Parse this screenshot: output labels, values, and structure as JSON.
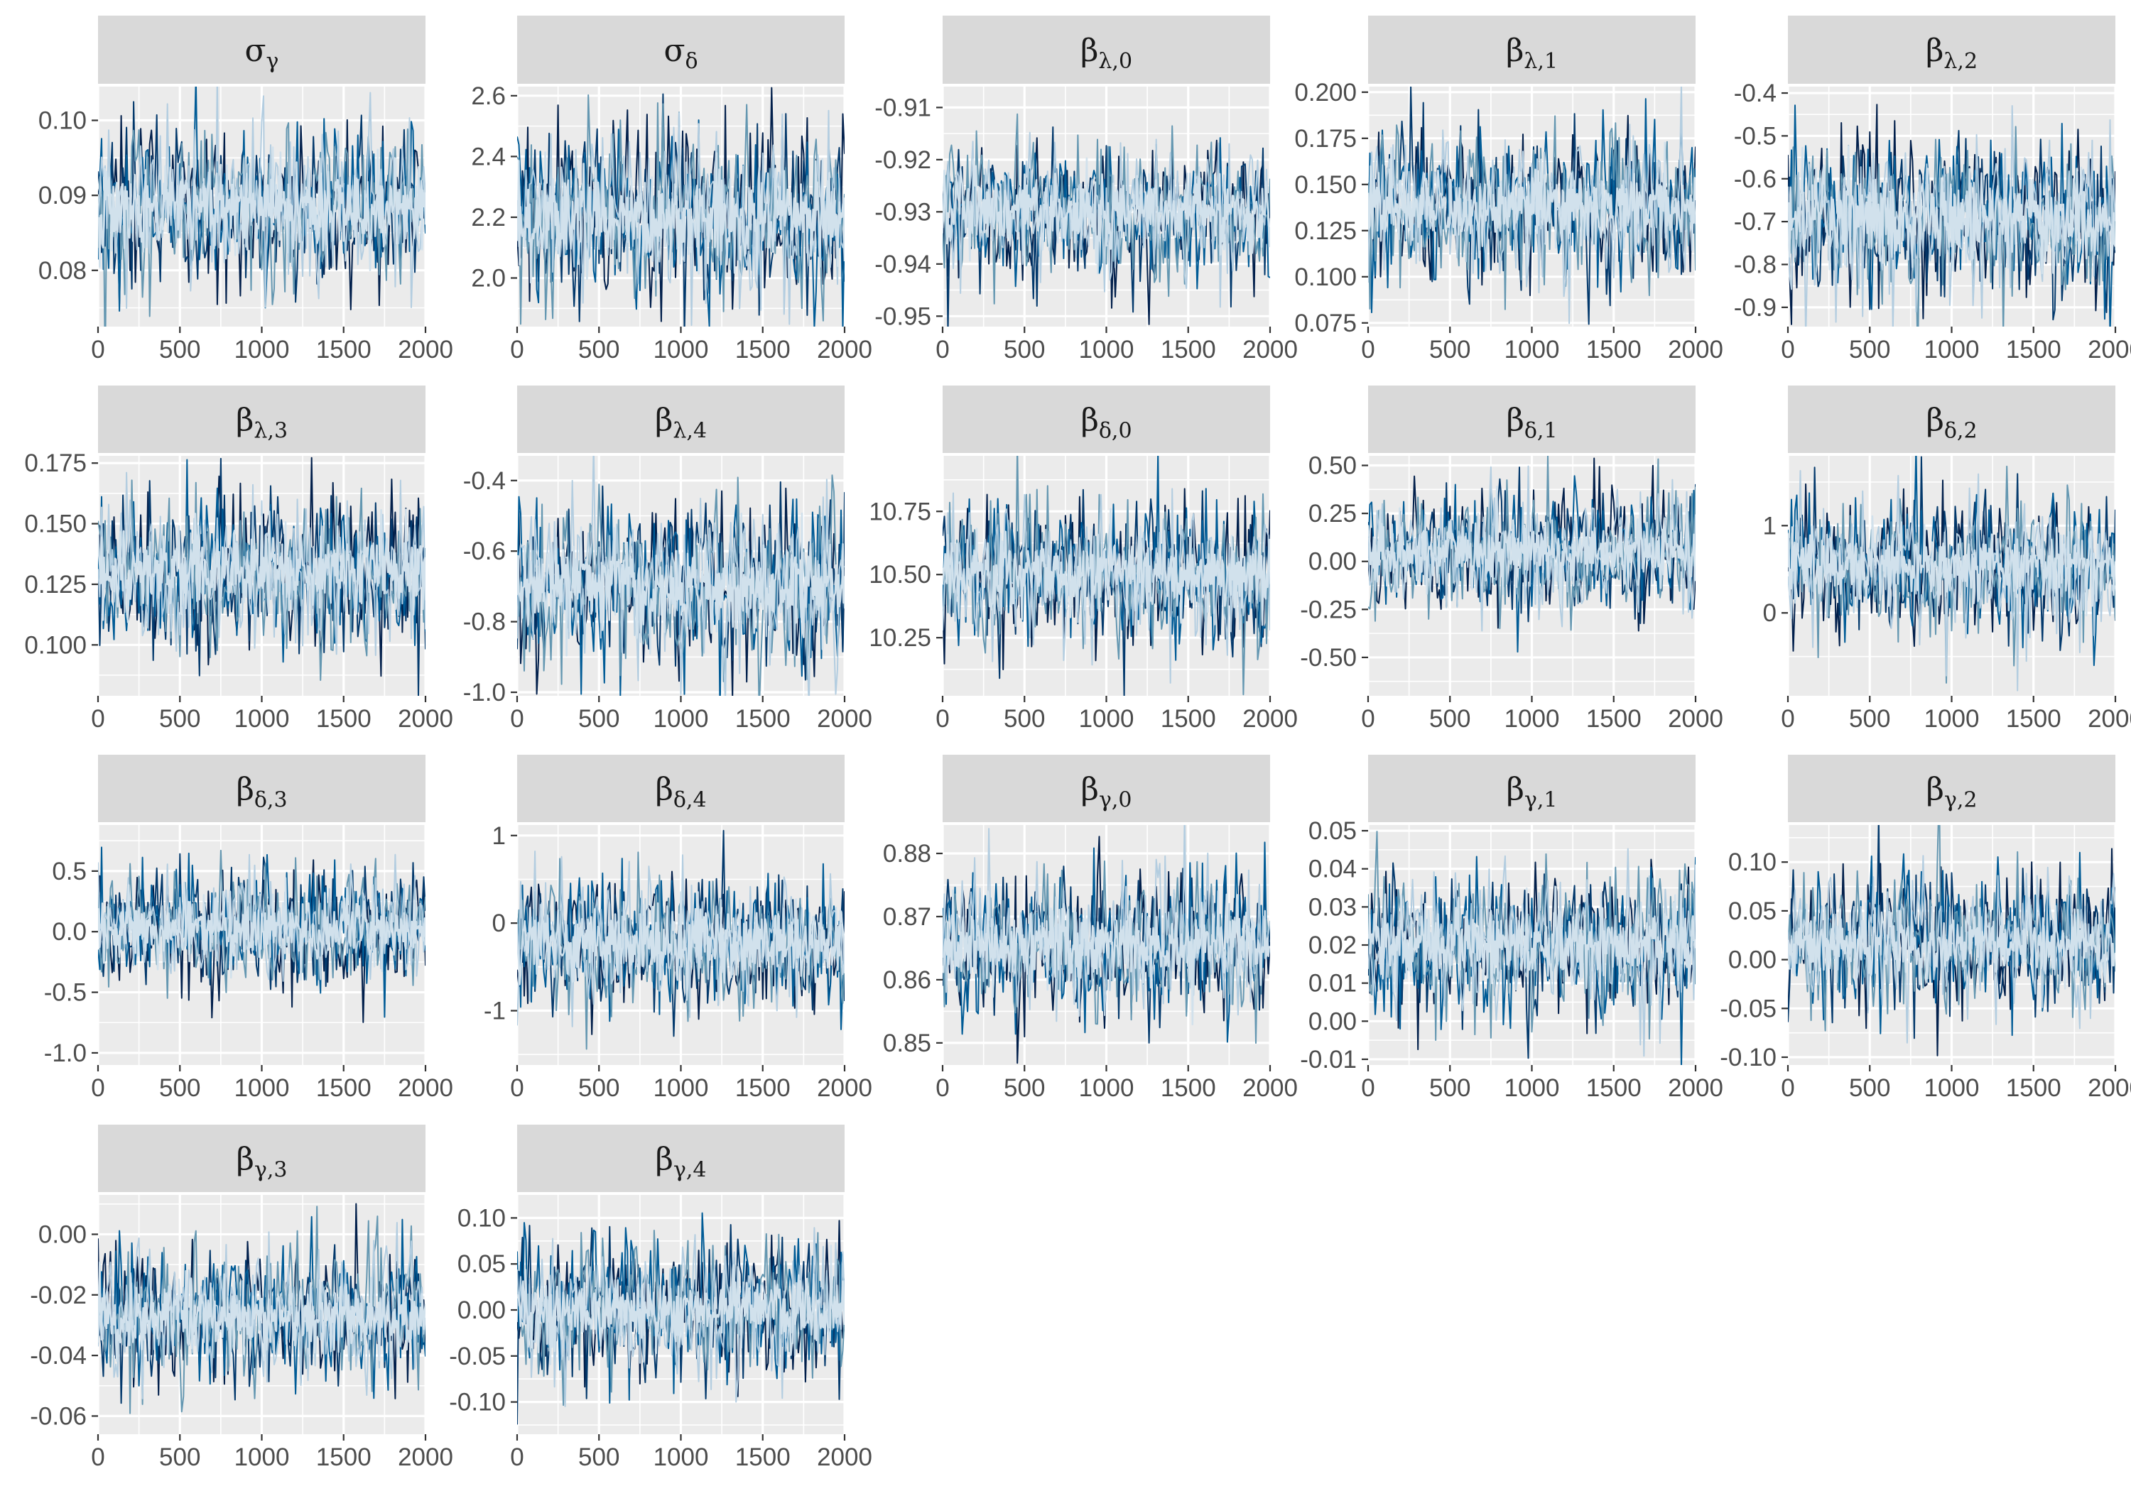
{
  "chart_data": {
    "layout": "facet-grid-4x5",
    "colors": {
      "panel_bg": "#ebebeb",
      "strip_bg": "#d9d9d9",
      "grid_major": "#ffffff",
      "chains": [
        "#d1e1ec",
        "#b3cde0",
        "#6497b1",
        "#005b96",
        "#03396c",
        "#011f4b"
      ]
    },
    "chain_colors": [
      "#011f4b",
      "#03396c",
      "#005b96",
      "#6497b1",
      "#b3cde0",
      "#d1e1ec"
    ],
    "panels": [
      {
        "type": "line",
        "title": {
          "base": "σ",
          "sub": "γ"
        },
        "xlim": [
          0,
          2000
        ],
        "x_ticks": [
          "0",
          "500",
          "1000",
          "1500",
          "2000"
        ],
        "x_tick_values": [
          0,
          500,
          1000,
          1500,
          2000
        ],
        "ylim": [
          0.0725,
          0.1045
        ],
        "y_ticks": [
          "0.08",
          "0.09",
          "0.10"
        ],
        "y_tick_values": [
          0.08,
          0.09,
          0.1
        ],
        "center": 0.0885,
        "spread": 0.0052,
        "iterations": 2000,
        "chains": 6
      },
      {
        "type": "line",
        "title": {
          "base": "σ",
          "sub": "δ"
        },
        "xlim": [
          0,
          2000
        ],
        "x_ticks": [
          "0",
          "500",
          "1000",
          "1500",
          "2000"
        ],
        "x_tick_values": [
          0,
          500,
          1000,
          1500,
          2000
        ],
        "ylim": [
          1.84,
          2.63
        ],
        "y_ticks": [
          "2.0",
          "2.2",
          "2.4",
          "2.6"
        ],
        "y_tick_values": [
          2.0,
          2.2,
          2.4,
          2.6
        ],
        "center": 2.2,
        "spread": 0.14,
        "iterations": 2000,
        "chains": 6
      },
      {
        "type": "line",
        "title": {
          "base": "β",
          "sub": "λ,0"
        },
        "xlim": [
          0,
          2000
        ],
        "x_ticks": [
          "0",
          "500",
          "1000",
          "1500",
          "2000"
        ],
        "x_tick_values": [
          0,
          500,
          1000,
          1500,
          2000
        ],
        "ylim": [
          -0.952,
          -0.906
        ],
        "y_ticks": [
          "-0.95",
          "-0.94",
          "-0.93",
          "-0.92",
          "-0.91"
        ],
        "y_tick_values": [
          -0.95,
          -0.94,
          -0.93,
          -0.92,
          -0.91
        ],
        "center": -0.93,
        "spread": 0.0065,
        "iterations": 2000,
        "chains": 6
      },
      {
        "type": "line",
        "title": {
          "base": "β",
          "sub": "λ,1"
        },
        "xlim": [
          0,
          2000
        ],
        "x_ticks": [
          "0",
          "500",
          "1000",
          "1500",
          "2000"
        ],
        "x_tick_values": [
          0,
          500,
          1000,
          1500,
          2000
        ],
        "ylim": [
          0.073,
          0.203
        ],
        "y_ticks": [
          "0.075",
          "0.100",
          "0.125",
          "0.150",
          "0.175",
          "0.200"
        ],
        "y_tick_values": [
          0.075,
          0.1,
          0.125,
          0.15,
          0.175,
          0.2
        ],
        "center": 0.137,
        "spread": 0.021,
        "iterations": 2000,
        "chains": 6
      },
      {
        "type": "line",
        "title": {
          "base": "β",
          "sub": "λ,2"
        },
        "xlim": [
          0,
          2000
        ],
        "x_ticks": [
          "0",
          "500",
          "1000",
          "1500",
          "2000"
        ],
        "x_tick_values": [
          0,
          500,
          1000,
          1500,
          2000
        ],
        "ylim": [
          -0.945,
          -0.385
        ],
        "y_ticks": [
          "-0.9",
          "-0.8",
          "-0.7",
          "-0.6",
          "-0.5",
          "-0.4"
        ],
        "y_tick_values": [
          -0.9,
          -0.8,
          -0.7,
          -0.6,
          -0.5,
          -0.4
        ],
        "center": -0.69,
        "spread": 0.095,
        "iterations": 2000,
        "chains": 6
      },
      {
        "type": "line",
        "title": {
          "base": "β",
          "sub": "λ,3"
        },
        "xlim": [
          0,
          2000
        ],
        "x_ticks": [
          "0",
          "500",
          "1000",
          "1500",
          "2000"
        ],
        "x_tick_values": [
          0,
          500,
          1000,
          1500,
          2000
        ],
        "ylim": [
          0.079,
          0.178
        ],
        "y_ticks": [
          "0.100",
          "0.125",
          "0.150",
          "0.175"
        ],
        "y_tick_values": [
          0.1,
          0.125,
          0.15,
          0.175
        ],
        "center": 0.13,
        "spread": 0.016,
        "iterations": 2000,
        "chains": 6
      },
      {
        "type": "line",
        "title": {
          "base": "β",
          "sub": "λ,4"
        },
        "xlim": [
          0,
          2000
        ],
        "x_ticks": [
          "0",
          "500",
          "1000",
          "1500",
          "2000"
        ],
        "x_tick_values": [
          0,
          500,
          1000,
          1500,
          2000
        ],
        "ylim": [
          -1.01,
          -0.33
        ],
        "y_ticks": [
          "-1.0",
          "-0.8",
          "-0.6",
          "-0.4"
        ],
        "y_tick_values": [
          -1.0,
          -0.8,
          -0.6,
          -0.4
        ],
        "center": -0.7,
        "spread": 0.12,
        "iterations": 2000,
        "chains": 6
      },
      {
        "type": "line",
        "title": {
          "base": "β",
          "sub": "δ,0"
        },
        "xlim": [
          0,
          2000
        ],
        "x_ticks": [
          "0",
          "500",
          "1000",
          "1500",
          "2000"
        ],
        "x_tick_values": [
          0,
          500,
          1000,
          1500,
          2000
        ],
        "ylim": [
          10.02,
          10.97
        ],
        "y_ticks": [
          "10.25",
          "10.50",
          "10.75"
        ],
        "y_tick_values": [
          10.25,
          10.5,
          10.75
        ],
        "center": 10.5,
        "spread": 0.14,
        "iterations": 2000,
        "chains": 6
      },
      {
        "type": "line",
        "title": {
          "base": "β",
          "sub": "δ,1"
        },
        "xlim": [
          0,
          2000
        ],
        "x_ticks": [
          "0",
          "500",
          "1000",
          "1500",
          "2000"
        ],
        "x_tick_values": [
          0,
          500,
          1000,
          1500,
          2000
        ],
        "ylim": [
          -0.7,
          0.55
        ],
        "y_ticks": [
          "-0.50",
          "-0.25",
          "0.00",
          "0.25",
          "0.50"
        ],
        "y_tick_values": [
          -0.5,
          -0.25,
          0.0,
          0.25,
          0.5
        ],
        "center": 0.04,
        "spread": 0.16,
        "iterations": 2000,
        "chains": 6
      },
      {
        "type": "line",
        "title": {
          "base": "β",
          "sub": "δ,2"
        },
        "xlim": [
          0,
          2000
        ],
        "x_ticks": [
          "0",
          "500",
          "1000",
          "1500",
          "2000"
        ],
        "x_tick_values": [
          0,
          500,
          1000,
          1500,
          2000
        ],
        "ylim": [
          -0.95,
          1.8
        ],
        "y_ticks": [
          "0",
          "1"
        ],
        "y_tick_values": [
          0,
          1
        ],
        "center": 0.55,
        "spread": 0.38,
        "iterations": 2000,
        "chains": 6
      },
      {
        "type": "line",
        "title": {
          "base": "β",
          "sub": "δ,3"
        },
        "xlim": [
          0,
          2000
        ],
        "x_ticks": [
          "0",
          "500",
          "1000",
          "1500",
          "2000"
        ],
        "x_tick_values": [
          0,
          500,
          1000,
          1500,
          2000
        ],
        "ylim": [
          -1.1,
          0.88
        ],
        "y_ticks": [
          "-1.0",
          "-0.5",
          "0.0",
          "0.5"
        ],
        "y_tick_values": [
          -1.0,
          -0.5,
          0.0,
          0.5
        ],
        "center": 0.03,
        "spread": 0.24,
        "iterations": 2000,
        "chains": 6
      },
      {
        "type": "line",
        "title": {
          "base": "β",
          "sub": "δ,4"
        },
        "xlim": [
          0,
          2000
        ],
        "x_ticks": [
          "0",
          "500",
          "1000",
          "1500",
          "2000"
        ],
        "x_tick_values": [
          0,
          500,
          1000,
          1500,
          2000
        ],
        "ylim": [
          -1.62,
          1.12
        ],
        "y_ticks": [
          "-1",
          "0",
          "1"
        ],
        "y_tick_values": [
          -1,
          0,
          1
        ],
        "center": -0.23,
        "spread": 0.38,
        "iterations": 2000,
        "chains": 6
      },
      {
        "type": "line",
        "title": {
          "base": "β",
          "sub": "γ,0"
        },
        "xlim": [
          0,
          2000
        ],
        "x_ticks": [
          "0",
          "500",
          "1000",
          "1500",
          "2000"
        ],
        "x_tick_values": [
          0,
          500,
          1000,
          1500,
          2000
        ],
        "ylim": [
          0.8465,
          0.8845
        ],
        "y_ticks": [
          "0.85",
          "0.86",
          "0.87",
          "0.88"
        ],
        "y_tick_values": [
          0.85,
          0.86,
          0.87,
          0.88
        ],
        "center": 0.8655,
        "spread": 0.0058,
        "iterations": 2000,
        "chains": 6
      },
      {
        "type": "line",
        "title": {
          "base": "β",
          "sub": "γ,1"
        },
        "xlim": [
          0,
          2000
        ],
        "x_ticks": [
          "0",
          "500",
          "1000",
          "1500",
          "2000"
        ],
        "x_tick_values": [
          0,
          500,
          1000,
          1500,
          2000
        ],
        "ylim": [
          -0.0115,
          0.0515
        ],
        "y_ticks": [
          "-0.01",
          "0.00",
          "0.01",
          "0.02",
          "0.03",
          "0.04",
          "0.05"
        ],
        "y_tick_values": [
          -0.01,
          0.0,
          0.01,
          0.02,
          0.03,
          0.04,
          0.05
        ],
        "center": 0.0205,
        "spread": 0.0095,
        "iterations": 2000,
        "chains": 6
      },
      {
        "type": "line",
        "title": {
          "base": "β",
          "sub": "γ,2"
        },
        "xlim": [
          0,
          2000
        ],
        "x_ticks": [
          "0",
          "500",
          "1000",
          "1500",
          "2000"
        ],
        "x_tick_values": [
          0,
          500,
          1000,
          1500,
          2000
        ],
        "ylim": [
          -0.108,
          0.138
        ],
        "y_ticks": [
          "-0.10",
          "-0.05",
          "0.00",
          "0.05",
          "0.10"
        ],
        "y_tick_values": [
          -0.1,
          -0.05,
          0.0,
          0.05,
          0.1
        ],
        "center": 0.018,
        "spread": 0.034,
        "iterations": 2000,
        "chains": 6
      },
      {
        "type": "line",
        "title": {
          "base": "β",
          "sub": "γ,3"
        },
        "xlim": [
          0,
          2000
        ],
        "x_ticks": [
          "0",
          "500",
          "1000",
          "1500",
          "2000"
        ],
        "x_tick_values": [
          0,
          500,
          1000,
          1500,
          2000
        ],
        "ylim": [
          -0.066,
          0.013
        ],
        "y_ticks": [
          "-0.06",
          "-0.04",
          "-0.02",
          "0.00"
        ],
        "y_tick_values": [
          -0.06,
          -0.04,
          -0.02,
          0.0
        ],
        "center": -0.027,
        "spread": 0.011,
        "iterations": 2000,
        "chains": 6
      },
      {
        "type": "line",
        "title": {
          "base": "β",
          "sub": "γ,4"
        },
        "xlim": [
          0,
          2000
        ],
        "x_ticks": [
          "0",
          "500",
          "1000",
          "1500",
          "2000"
        ],
        "x_tick_values": [
          0,
          500,
          1000,
          1500,
          2000
        ],
        "ylim": [
          -0.135,
          0.125
        ],
        "y_ticks": [
          "-0.10",
          "-0.05",
          "0.00",
          "0.05",
          "0.10"
        ],
        "y_tick_values": [
          -0.1,
          -0.05,
          0.0,
          0.05,
          0.1
        ],
        "center": 0.0,
        "spread": 0.037,
        "iterations": 2000,
        "chains": 6
      }
    ]
  }
}
